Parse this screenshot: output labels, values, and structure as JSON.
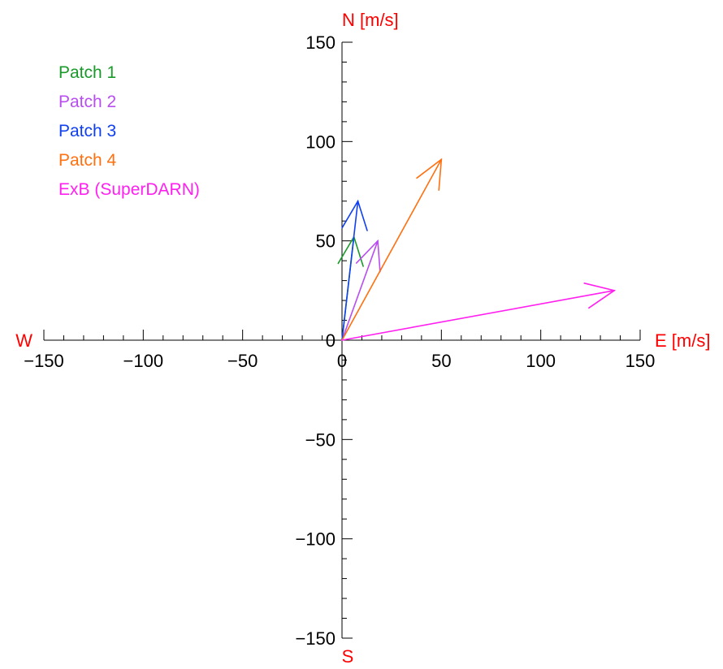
{
  "chart_data": {
    "type": "vector",
    "xlim": [
      -150,
      150
    ],
    "ylim": [
      -150,
      150
    ],
    "x_ticks": [
      -150,
      -100,
      -50,
      0,
      50,
      100,
      150
    ],
    "y_ticks": [
      -150,
      -100,
      -50,
      0,
      50,
      100,
      150
    ],
    "x_tick_labels": [
      "−150",
      "−100",
      "−50",
      "0",
      "50",
      "100",
      "150"
    ],
    "y_tick_labels": [
      "−150",
      "−100",
      "−50",
      "0",
      "50",
      "100",
      "150"
    ],
    "origin_x_label": "0",
    "origin_y_label": "0",
    "direction_labels": {
      "north": "N [m/s]",
      "south": "S",
      "east": "E [m/s]",
      "west": "W"
    },
    "direction_label_color": "#ff0000",
    "legend_position": "top-left",
    "grid": false,
    "series": [
      {
        "name": "Patch 1",
        "color": "#1a9a2a",
        "start": [
          0,
          0
        ],
        "end": [
          6,
          52
        ]
      },
      {
        "name": "Patch 2",
        "color": "#b84ef0",
        "start": [
          0,
          0
        ],
        "end": [
          18,
          50
        ]
      },
      {
        "name": "Patch 3",
        "color": "#1040f0",
        "start": [
          0,
          0
        ],
        "end": [
          8,
          70
        ]
      },
      {
        "name": "Patch 4",
        "color": "#ff7010",
        "start": [
          0,
          0
        ],
        "end": [
          50,
          91
        ]
      },
      {
        "name": "ExB (SuperDARN)",
        "color": "#ff20f0",
        "start": [
          0,
          0
        ],
        "end": [
          137,
          25
        ]
      }
    ]
  }
}
